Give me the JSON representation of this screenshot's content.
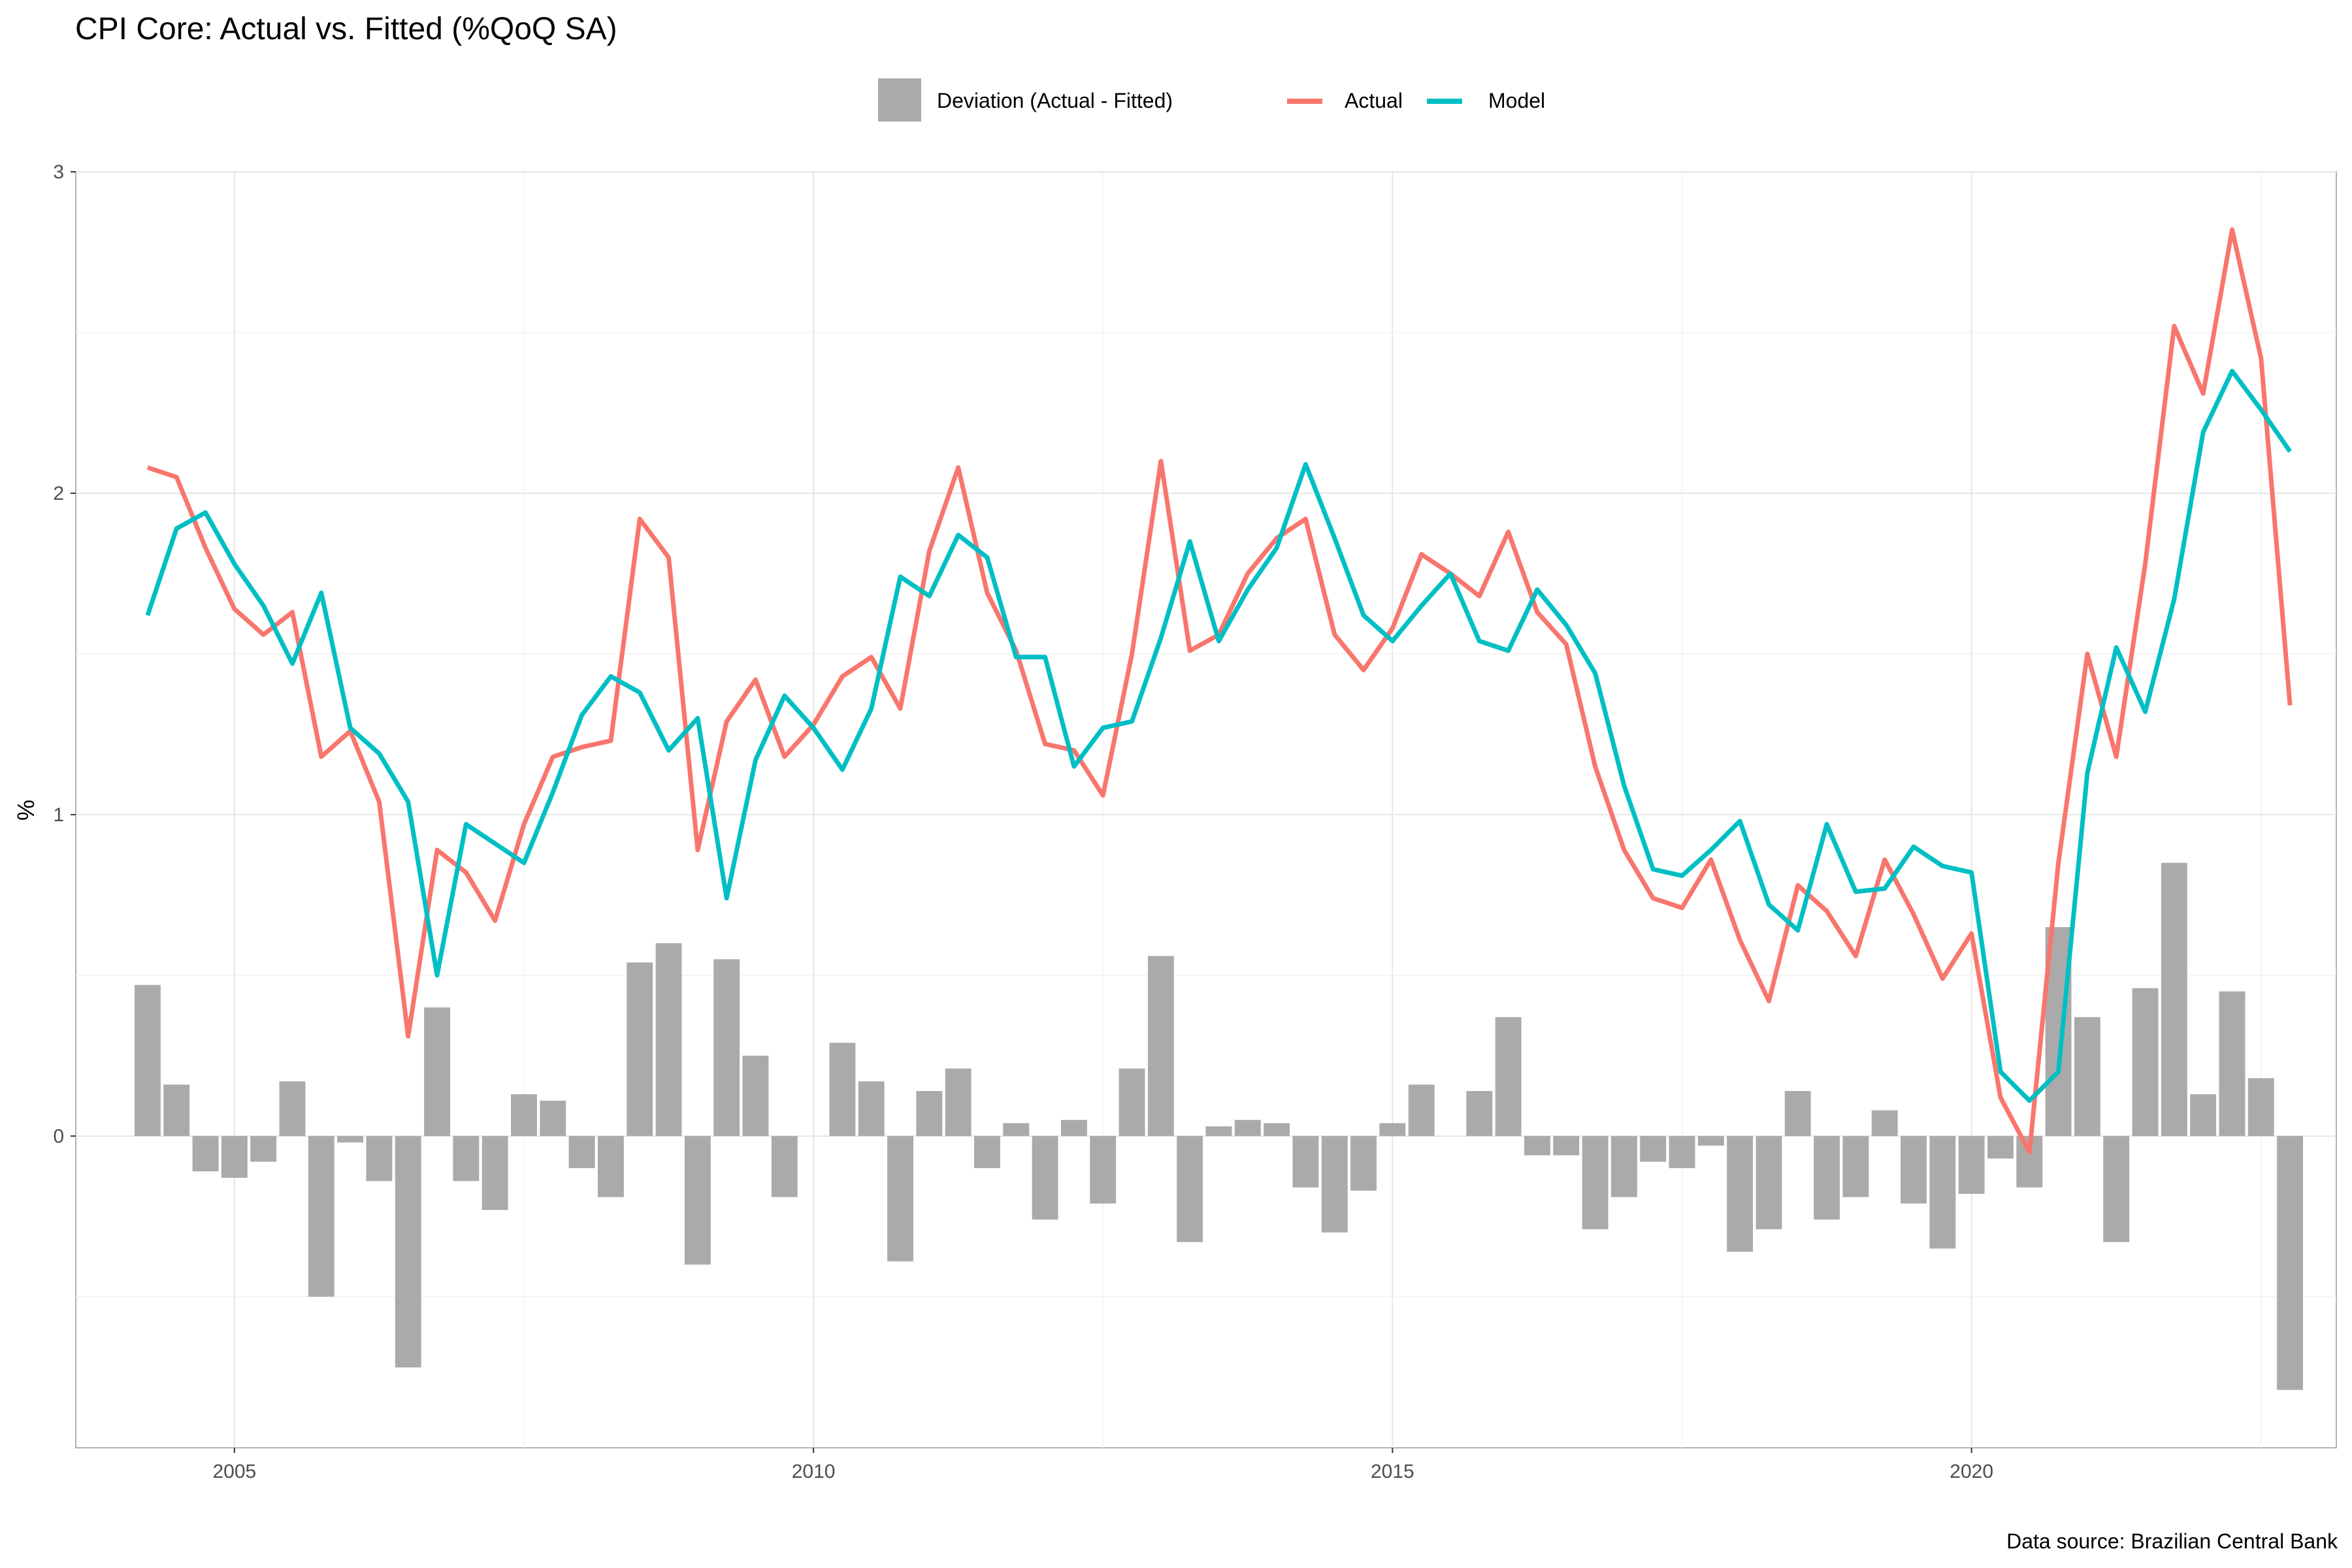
{
  "chart_data": {
    "type": "bar+line",
    "title": "CPI Core: Actual vs. Fitted (%QoQ SA)",
    "ylabel": "%",
    "xlabel": "",
    "caption": "Data source: Brazilian Central Bank",
    "legend": {
      "placement": "top",
      "items": [
        {
          "label": "Deviation (Actual - Fitted)",
          "kind": "bar",
          "color": "#aaaaaa"
        },
        {
          "label": "Actual",
          "kind": "line",
          "color": "#f8766d"
        },
        {
          "label": "Model",
          "kind": "line",
          "color": "#00bfc4"
        }
      ]
    },
    "xlim": [
      2003.63,
      2023.15
    ],
    "ylim": [
      -0.97,
      3.0
    ],
    "x_ticks": [
      2005,
      2010,
      2015,
      2020
    ],
    "y_ticks": [
      0,
      1,
      2,
      3
    ],
    "grid": true,
    "x_start": 2004.25,
    "x_step": 0.25,
    "actual": [
      2.08,
      2.05,
      1.83,
      1.64,
      1.56,
      1.63,
      1.18,
      1.26,
      1.04,
      0.31,
      0.89,
      0.82,
      0.67,
      0.97,
      1.18,
      1.21,
      1.23,
      1.92,
      1.8,
      0.89,
      1.29,
      1.42,
      1.18,
      1.28,
      1.43,
      1.49,
      1.33,
      1.82,
      2.08,
      1.69,
      1.51,
      1.22,
      1.2,
      1.06,
      1.5,
      2.1,
      1.51,
      1.56,
      1.75,
      1.86,
      1.92,
      1.56,
      1.45,
      1.58,
      1.81,
      1.75,
      1.68,
      1.88,
      1.63,
      1.53,
      1.15,
      0.89,
      0.74,
      0.71,
      0.86,
      0.61,
      0.42,
      0.78,
      0.7,
      0.56,
      0.86,
      0.69,
      0.49,
      0.63,
      0.12,
      -0.05,
      0.85,
      1.5,
      1.18,
      1.78,
      2.52,
      2.31,
      2.82,
      2.42,
      1.34
    ],
    "model": [
      1.62,
      1.89,
      1.94,
      1.78,
      1.65,
      1.47,
      1.69,
      1.27,
      1.19,
      1.04,
      0.5,
      0.97,
      0.91,
      0.85,
      1.07,
      1.31,
      1.43,
      1.38,
      1.2,
      1.3,
      0.74,
      1.17,
      1.37,
      1.27,
      1.14,
      1.33,
      1.74,
      1.68,
      1.87,
      1.8,
      1.49,
      1.49,
      1.15,
      1.27,
      1.29,
      1.55,
      1.85,
      1.54,
      1.7,
      1.83,
      2.09,
      1.86,
      1.62,
      1.54,
      1.65,
      1.75,
      1.54,
      1.51,
      1.7,
      1.59,
      1.44,
      1.09,
      0.83,
      0.81,
      0.89,
      0.98,
      0.72,
      0.64,
      0.97,
      0.76,
      0.77,
      0.9,
      0.84,
      0.82,
      0.2,
      0.11,
      0.2,
      1.13,
      1.52,
      1.32,
      1.67,
      2.19,
      2.38,
      2.26,
      2.13
    ],
    "deviation": [
      0.47,
      0.16,
      -0.11,
      -0.13,
      -0.08,
      0.17,
      -0.5,
      -0.02,
      -0.14,
      -0.72,
      0.4,
      -0.14,
      -0.23,
      0.13,
      0.11,
      -0.1,
      -0.19,
      0.54,
      0.6,
      -0.4,
      0.55,
      0.25,
      -0.19,
      0.0,
      0.29,
      0.17,
      -0.39,
      0.14,
      0.21,
      -0.1,
      0.04,
      -0.26,
      0.05,
      -0.21,
      0.21,
      0.56,
      -0.33,
      0.03,
      0.05,
      0.04,
      -0.16,
      -0.3,
      -0.17,
      0.04,
      0.16,
      0.0,
      0.14,
      0.37,
      -0.06,
      -0.06,
      -0.29,
      -0.19,
      -0.08,
      -0.1,
      -0.03,
      -0.36,
      -0.29,
      0.14,
      -0.26,
      -0.19,
      0.08,
      -0.21,
      -0.35,
      -0.18,
      -0.07,
      -0.16,
      0.65,
      0.37,
      -0.33,
      0.46,
      0.85,
      0.13,
      0.45,
      0.18,
      -0.79
    ]
  }
}
